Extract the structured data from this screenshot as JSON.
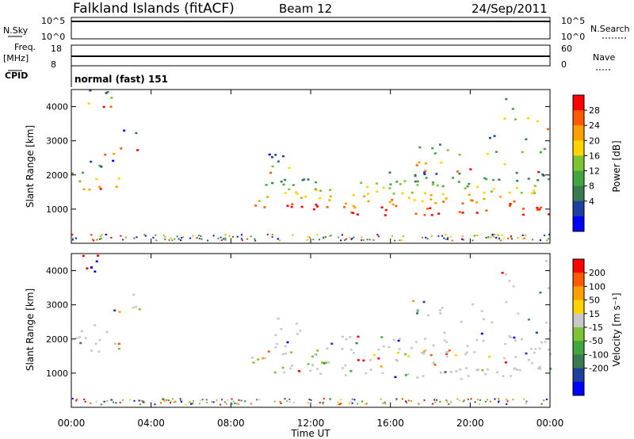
{
  "header": {
    "station": "Falkland Islands (fitACF)",
    "beam": "Beam 12",
    "date": "24/Sep/2011"
  },
  "status_panels": {
    "nsky_label": "N.Sky",
    "nsky_ticks": [
      "10^5",
      "10^0"
    ],
    "nsearch_label": "N.Search",
    "nsearch_ticks": [
      "10^5",
      "10^0"
    ],
    "freq_label": "Freq.",
    "freq_unit": "[MHz]",
    "freq_ticks": [
      "18",
      "8"
    ],
    "nave_label": "Nave",
    "nave_ticks": [
      "60",
      "0"
    ],
    "cpid_label": "CPID",
    "cpid_value": "normal (fast) 151"
  },
  "colors": {
    "power_scale": [
      "#0000ff",
      "#1e3fa0",
      "#3a7a50",
      "#3fa640",
      "#7ec432",
      "#ffd400",
      "#ffa000",
      "#ff5a00",
      "#ff0000"
    ],
    "velocity_scale": [
      "#0000ff",
      "#1e3fa0",
      "#3a7a50",
      "#3fa640",
      "#7ec432",
      "#c8c8c8",
      "#ffd400",
      "#ffa000",
      "#ff5a00",
      "#ff0000"
    ]
  },
  "chart_data": [
    {
      "type": "heatmap",
      "name": "power",
      "ylabel": "Slant Range [km]",
      "ylim": [
        0,
        4500
      ],
      "yticks": [
        "4000",
        "3000",
        "2000",
        "1000"
      ],
      "x_ticks": [
        "00:00",
        "04:00",
        "08:00",
        "12:00",
        "16:00",
        "20:00",
        "00:00"
      ],
      "colorbar_label": "Power [dB]",
      "colorbar_ticks": [
        "28",
        "24",
        "20",
        "16",
        "12",
        "8",
        "4"
      ]
    },
    {
      "type": "heatmap",
      "name": "velocity",
      "ylabel": "Slant Range [km]",
      "ylim": [
        0,
        4500
      ],
      "yticks": [
        "4000",
        "3000",
        "2000",
        "1000"
      ],
      "x_ticks": [
        "00:00",
        "04:00",
        "08:00",
        "12:00",
        "16:00",
        "20:00",
        "00:00"
      ],
      "xlabel": "Time UT",
      "colorbar_label": "Velocity [m s⁻¹]",
      "colorbar_ticks": [
        "200",
        "100",
        "50",
        "15",
        "-15",
        "-50",
        "-100",
        "-200"
      ]
    }
  ]
}
